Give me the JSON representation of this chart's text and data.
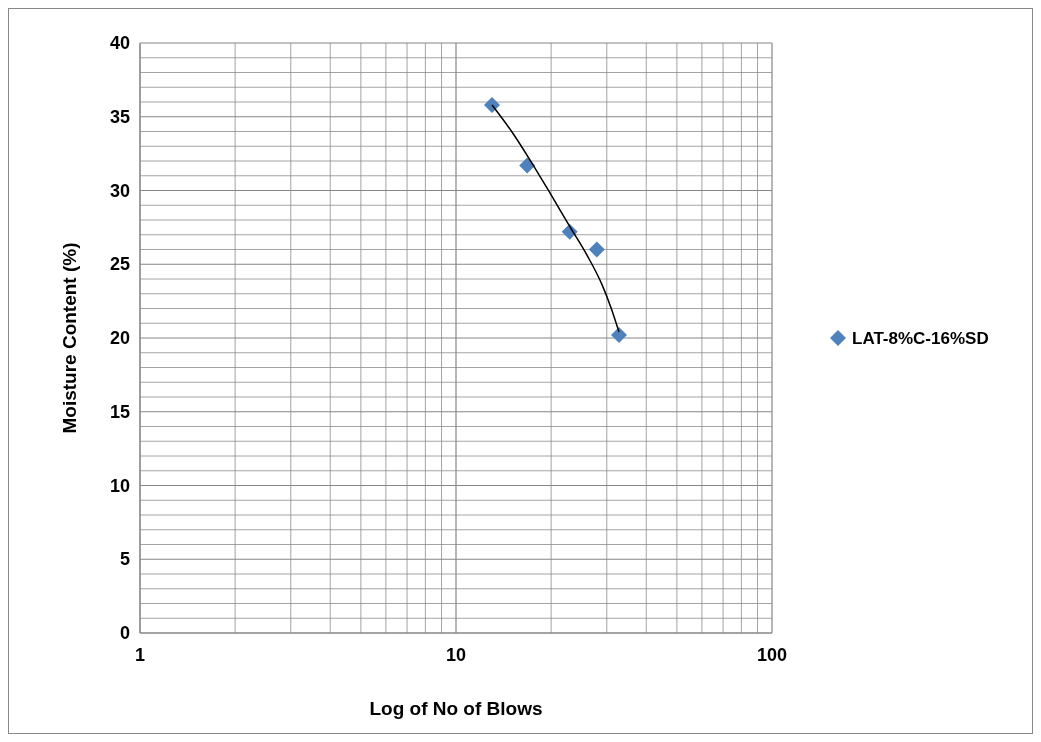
{
  "chart_data": {
    "type": "scatter",
    "xlabel": "Log of No of Blows",
    "ylabel": "Moisture Content (%)",
    "log": "x",
    "xlim": [
      1,
      100
    ],
    "ylim": [
      0,
      40
    ],
    "xticks": [
      1,
      {
        "value": 2,
        "label": null
      },
      {
        "value": 3,
        "label": null
      },
      {
        "value": 4,
        "label": null
      },
      {
        "value": 5,
        "label": null
      },
      {
        "value": 6,
        "label": null
      },
      {
        "value": 7,
        "label": null
      },
      {
        "value": 8,
        "label": null
      },
      {
        "value": 9,
        "label": null
      },
      10,
      {
        "value": 20,
        "label": null
      },
      {
        "value": 30,
        "label": null
      },
      {
        "value": 40,
        "label": null
      },
      {
        "value": 50,
        "label": null
      },
      {
        "value": 60,
        "label": null
      },
      {
        "value": 70,
        "label": null
      },
      {
        "value": 80,
        "label": null
      },
      {
        "value": 90,
        "label": null
      },
      100
    ],
    "yticks": [
      0,
      {
        "value": 1,
        "label": null
      },
      {
        "value": 2,
        "label": null
      },
      {
        "value": 3,
        "label": null
      },
      {
        "value": 4,
        "label": null
      },
      5,
      {
        "value": 6,
        "label": null
      },
      {
        "value": 7,
        "label": null
      },
      {
        "value": 8,
        "label": null
      },
      {
        "value": 9,
        "label": null
      },
      10,
      {
        "value": 11,
        "label": null
      },
      {
        "value": 12,
        "label": null
      },
      {
        "value": 13,
        "label": null
      },
      {
        "value": 14,
        "label": null
      },
      15,
      {
        "value": 16,
        "label": null
      },
      {
        "value": 17,
        "label": null
      },
      {
        "value": 18,
        "label": null
      },
      {
        "value": 19,
        "label": null
      },
      20,
      {
        "value": 21,
        "label": null
      },
      {
        "value": 22,
        "label": null
      },
      {
        "value": 23,
        "label": null
      },
      {
        "value": 24,
        "label": null
      },
      25,
      {
        "value": 26,
        "label": null
      },
      {
        "value": 27,
        "label": null
      },
      {
        "value": 28,
        "label": null
      },
      {
        "value": 29,
        "label": null
      },
      30,
      {
        "value": 31,
        "label": null
      },
      {
        "value": 32,
        "label": null
      },
      {
        "value": 33,
        "label": null
      },
      {
        "value": 34,
        "label": null
      },
      35,
      {
        "value": 36,
        "label": null
      },
      {
        "value": 37,
        "label": null
      },
      {
        "value": 38,
        "label": null
      },
      {
        "value": 39,
        "label": null
      },
      40
    ],
    "grid": true,
    "legend": "right",
    "series": [
      {
        "name": "LAT-8%C-16%SD",
        "marker": "diamond",
        "color": "#4f81bd",
        "x": [
          13.0,
          16.8,
          22.9,
          27.9,
          32.8
        ],
        "values": [
          35.8,
          31.7,
          27.2,
          26.0,
          20.2
        ]
      },
      {
        "type": "line",
        "marker": "none",
        "color": "#000000",
        "x": [
          13.0,
          15,
          17,
          20,
          23,
          26,
          29,
          31,
          32.8
        ],
        "values": [
          35.8,
          34.0,
          32.2,
          29.7,
          27.5,
          25.6,
          23.6,
          22.0,
          20.4
        ]
      }
    ]
  }
}
